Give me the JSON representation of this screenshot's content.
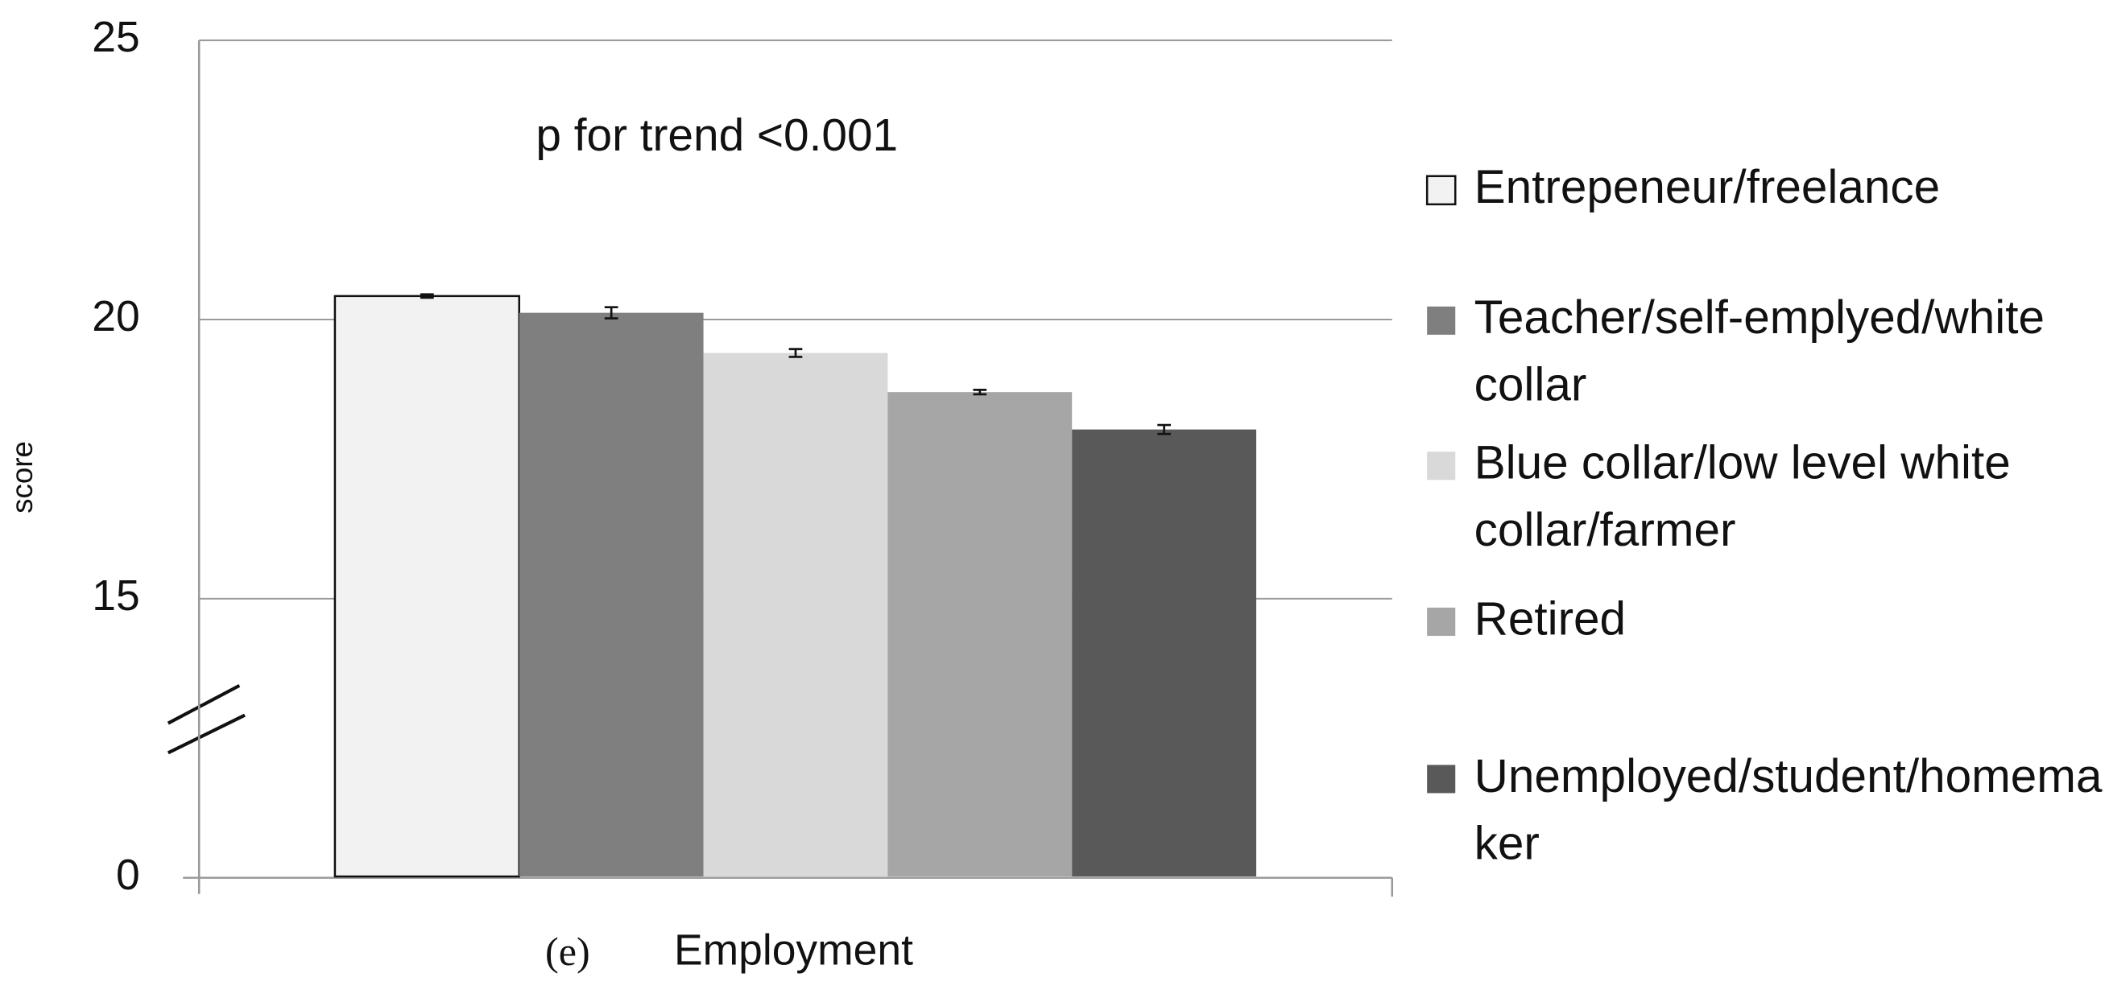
{
  "chart_data": {
    "type": "bar",
    "annotation": "p for trend <0.001",
    "caption": "(e)",
    "x_label": "Employment",
    "y_label": "score",
    "categories": [
      "Employment"
    ],
    "series": [
      {
        "name": "Entrepeneur/freelance",
        "color": "#f2f2f2",
        "values": [
          20.42
        ],
        "errors": [
          0.03
        ]
      },
      {
        "name": "Teacher/self-emplyed/white collar",
        "color": "#7f7f7f",
        "values": [
          20.12
        ],
        "errors": [
          0.1
        ]
      },
      {
        "name": "Blue collar/low level white collar/farmer",
        "color": "#d9d9d9",
        "values": [
          19.4
        ],
        "errors": [
          0.07
        ]
      },
      {
        "name": "Retired",
        "color": "#a6a6a6",
        "values": [
          18.7
        ],
        "errors": [
          0.04
        ]
      },
      {
        "name": "Unemployed/student/homemaker",
        "color": "#595959",
        "values": [
          18.03
        ],
        "errors": [
          0.08
        ]
      }
    ],
    "ylim": [
      0,
      25
    ],
    "yticks": [
      0,
      15,
      20,
      25
    ],
    "axis_break": true,
    "grid": true
  }
}
